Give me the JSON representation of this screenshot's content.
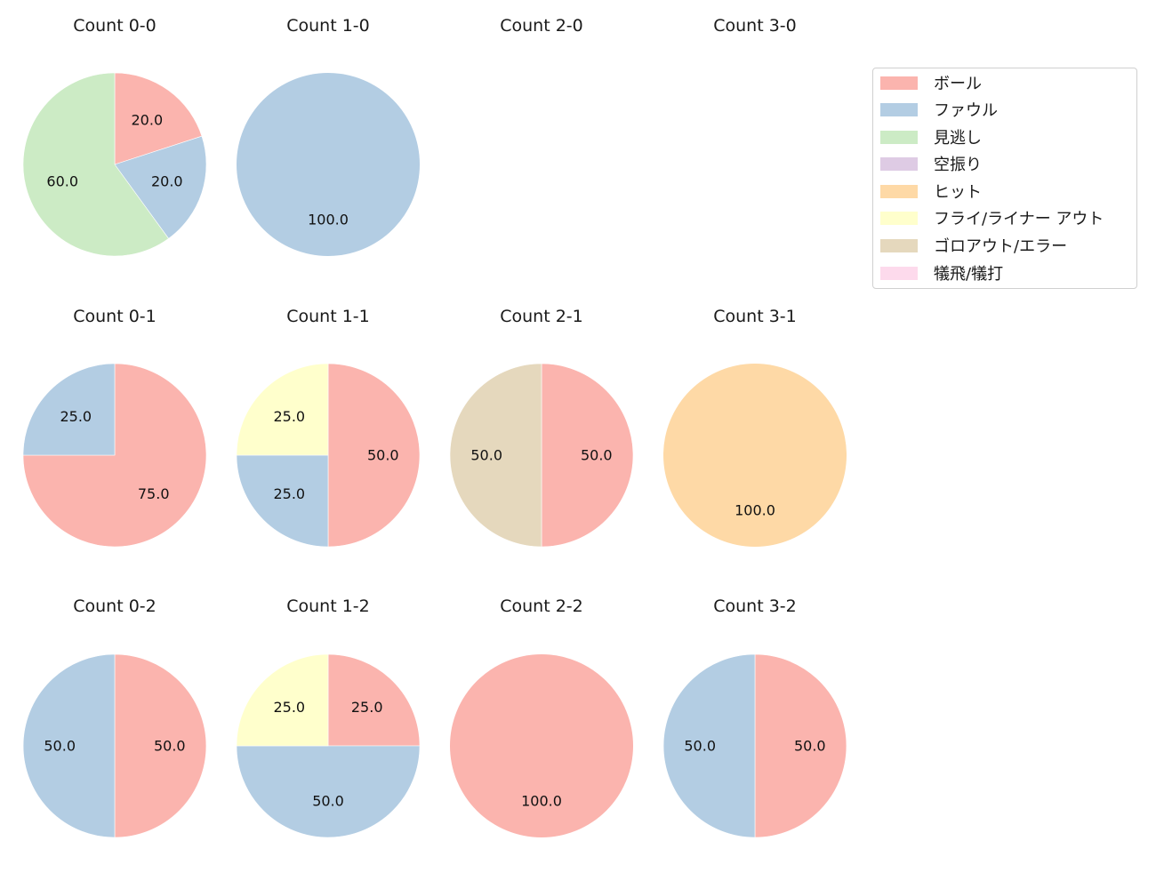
{
  "chart_data": {
    "type": "pie",
    "layout": {
      "rows": 3,
      "cols": 4,
      "start_angle": 90,
      "direction": "clockwise",
      "label_format": "%.1f"
    },
    "categories": [
      "ボール",
      "ファウル",
      "見逃し",
      "空振り",
      "ヒット",
      "フライ/ライナー アウト",
      "ゴロアウト/エラー",
      "犠飛/犠打"
    ],
    "colors": [
      "#fbb4ae",
      "#b3cde3",
      "#ccebc5",
      "#decbe4",
      "#fed9a6",
      "#ffffcc",
      "#e5d8bd",
      "#fddaec"
    ],
    "legend": {
      "position": "upper right",
      "entries": [
        "ボール",
        "ファウル",
        "見逃し",
        "空振り",
        "ヒット",
        "フライ/ライナー アウト",
        "ゴロアウト/エラー",
        "犠飛/犠打"
      ]
    },
    "charts": [
      {
        "title": "Count 0-0",
        "row": 0,
        "col": 0,
        "values": [
          20.0,
          20.0,
          60.0,
          0,
          0,
          0,
          0,
          0
        ]
      },
      {
        "title": "Count 1-0",
        "row": 0,
        "col": 1,
        "values": [
          0,
          100.0,
          0,
          0,
          0,
          0,
          0,
          0
        ]
      },
      {
        "title": "Count 2-0",
        "row": 0,
        "col": 2,
        "values": []
      },
      {
        "title": "Count 3-0",
        "row": 0,
        "col": 3,
        "values": []
      },
      {
        "title": "Count 0-1",
        "row": 1,
        "col": 0,
        "values": [
          75.0,
          25.0,
          0,
          0,
          0,
          0,
          0,
          0
        ]
      },
      {
        "title": "Count 1-1",
        "row": 1,
        "col": 1,
        "values": [
          50.0,
          25.0,
          0,
          0,
          0,
          25.0,
          0,
          0
        ]
      },
      {
        "title": "Count 2-1",
        "row": 1,
        "col": 2,
        "values": [
          50.0,
          0,
          0,
          0,
          0,
          0,
          50.0,
          0
        ]
      },
      {
        "title": "Count 3-1",
        "row": 1,
        "col": 3,
        "values": [
          0,
          0,
          0,
          0,
          100.0,
          0,
          0,
          0
        ]
      },
      {
        "title": "Count 0-2",
        "row": 2,
        "col": 0,
        "values": [
          50.0,
          50.0,
          0,
          0,
          0,
          0,
          0,
          0
        ]
      },
      {
        "title": "Count 1-2",
        "row": 2,
        "col": 1,
        "values": [
          25.0,
          50.0,
          0,
          0,
          0,
          25.0,
          0,
          0
        ]
      },
      {
        "title": "Count 2-2",
        "row": 2,
        "col": 2,
        "values": [
          100.0,
          0,
          0,
          0,
          0,
          0,
          0,
          0
        ]
      },
      {
        "title": "Count 3-2",
        "row": 2,
        "col": 3,
        "values": [
          50.0,
          50.0,
          0,
          0,
          0,
          0,
          0,
          0
        ]
      }
    ]
  }
}
